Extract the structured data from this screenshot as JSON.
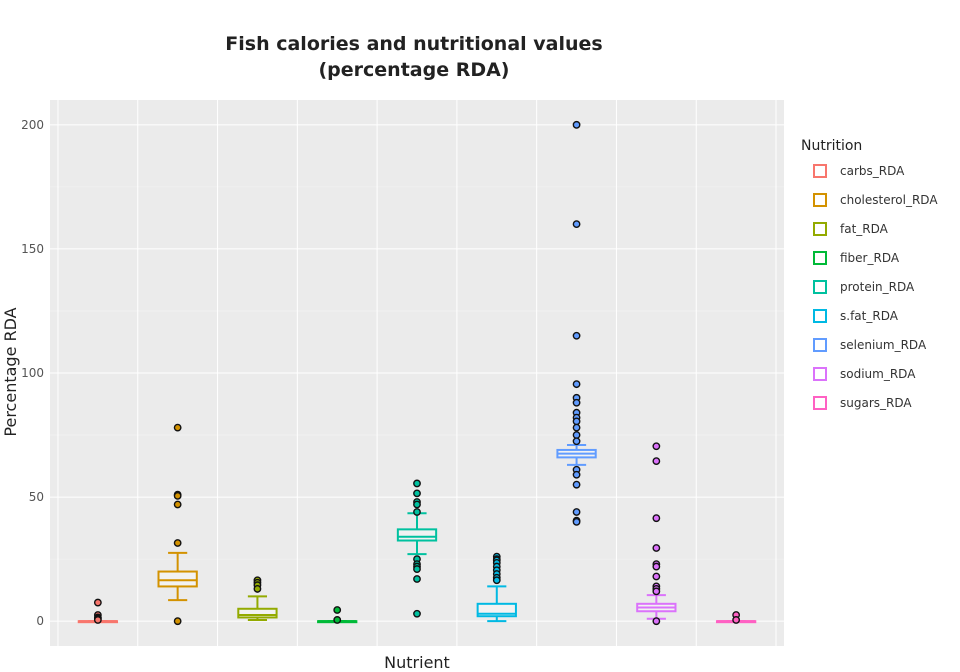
{
  "chart_data": {
    "type": "box",
    "title_lines": [
      "Fish calories and nutritional values",
      "(percentage RDA)"
    ],
    "xlabel": "Nutrient",
    "ylabel": "Percentage RDA",
    "ylim": [
      -10,
      210
    ],
    "yticks": [
      0,
      50,
      100,
      150,
      200
    ],
    "grid": true,
    "legend": {
      "title": "Nutrition",
      "position": "right"
    },
    "categories": [
      "carbs_RDA",
      "cholesterol_RDA",
      "fat_RDA",
      "fiber_RDA",
      "protein_RDA",
      "s.fat_RDA",
      "selenium_RDA",
      "sodium_RDA",
      "sugars_RDA"
    ],
    "colors": {
      "carbs_RDA": "#F8766D",
      "cholesterol_RDA": "#D39200",
      "fat_RDA": "#93AA00",
      "fiber_RDA": "#00BA38",
      "protein_RDA": "#00C19F",
      "s.fat_RDA": "#00B9E3",
      "selenium_RDA": "#619CFF",
      "sodium_RDA": "#DB72FB",
      "sugars_RDA": "#FF61C3"
    },
    "series": [
      {
        "name": "carbs_RDA",
        "min": 0,
        "q1": 0,
        "median": 0,
        "q3": 0,
        "max": 0,
        "outliers": [
          7.5,
          2.5,
          1.5,
          1,
          0.5
        ]
      },
      {
        "name": "cholesterol_RDA",
        "min": 8.5,
        "q1": 14,
        "median": 16.5,
        "q3": 20,
        "max": 27.5,
        "outliers": [
          78,
          51,
          50.5,
          47,
          31.5,
          0
        ]
      },
      {
        "name": "fat_RDA",
        "min": 0.5,
        "q1": 1.5,
        "median": 2.5,
        "q3": 5,
        "max": 10,
        "outliers": [
          16.5,
          15.5,
          14.5,
          13
        ]
      },
      {
        "name": "fiber_RDA",
        "min": 0,
        "q1": 0,
        "median": 0,
        "q3": 0,
        "max": 0,
        "outliers": [
          4.5,
          0.5
        ]
      },
      {
        "name": "protein_RDA",
        "min": 27,
        "q1": 32.5,
        "median": 34,
        "q3": 37,
        "max": 43.5,
        "outliers": [
          55.5,
          51.5,
          48,
          47,
          44,
          25,
          23,
          22,
          21,
          17,
          3
        ]
      },
      {
        "name": "s.fat_RDA",
        "min": 0,
        "q1": 2,
        "median": 3,
        "q3": 7,
        "max": 14,
        "outliers": [
          26,
          25,
          24.5,
          23.5,
          22,
          20.5,
          19,
          17.5,
          16.5
        ]
      },
      {
        "name": "selenium_RDA",
        "min": 63,
        "q1": 66,
        "median": 67.5,
        "q3": 69,
        "max": 71,
        "outliers": [
          200,
          160,
          115,
          95.5,
          90,
          88,
          84,
          82,
          80.5,
          78,
          75,
          72.5,
          61,
          59,
          55,
          44,
          40.5,
          40
        ]
      },
      {
        "name": "sodium_RDA",
        "min": 1,
        "q1": 4,
        "median": 5.5,
        "q3": 7,
        "max": 10.5,
        "outliers": [
          70.5,
          64.5,
          41.5,
          29.5,
          23,
          22,
          18,
          14,
          13,
          12,
          0
        ]
      },
      {
        "name": "sugars_RDA",
        "min": 0,
        "q1": 0,
        "median": 0,
        "q3": 0,
        "max": 0,
        "outliers": [
          2.5,
          0.5
        ]
      }
    ]
  }
}
